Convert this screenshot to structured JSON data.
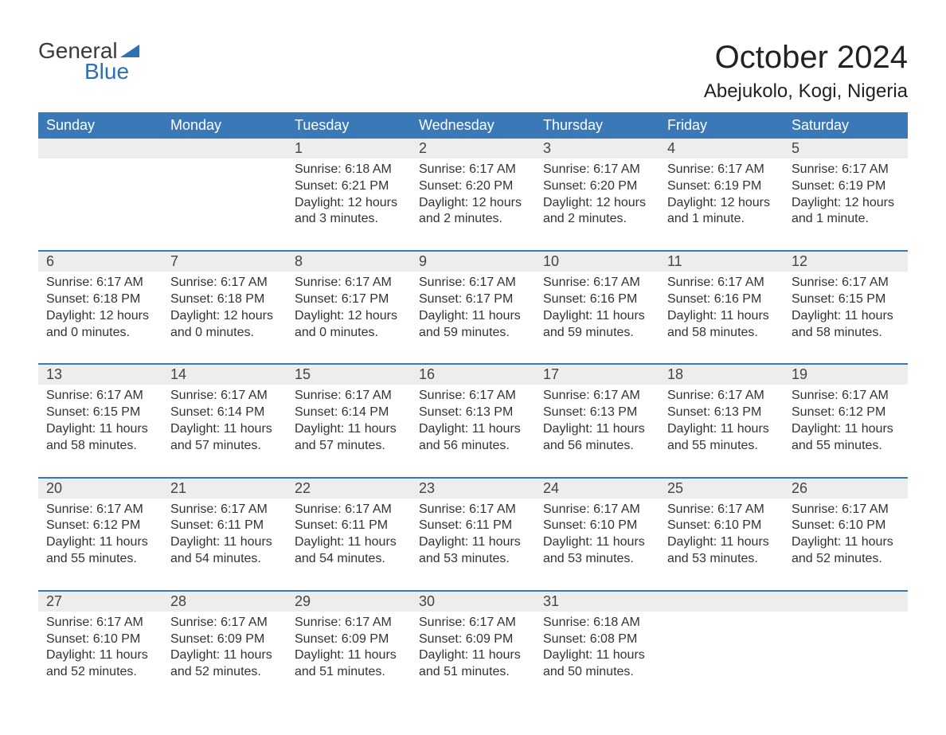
{
  "logo": {
    "text1": "General",
    "text2": "Blue"
  },
  "title": "October 2024",
  "location": "Abejukolo, Kogi, Nigeria",
  "colors": {
    "header_bg": "#3a78b8",
    "header_text": "#ffffff",
    "daynum_bg": "#eceded",
    "row_divider": "#3a78b8",
    "logo_blue": "#2f6fb3",
    "body_text": "#333333"
  },
  "weekdays": [
    "Sunday",
    "Monday",
    "Tuesday",
    "Wednesday",
    "Thursday",
    "Friday",
    "Saturday"
  ],
  "weeks": [
    [
      null,
      null,
      {
        "n": "1",
        "sunrise": "6:18 AM",
        "sunset": "6:21 PM",
        "daylight": "12 hours and 3 minutes."
      },
      {
        "n": "2",
        "sunrise": "6:17 AM",
        "sunset": "6:20 PM",
        "daylight": "12 hours and 2 minutes."
      },
      {
        "n": "3",
        "sunrise": "6:17 AM",
        "sunset": "6:20 PM",
        "daylight": "12 hours and 2 minutes."
      },
      {
        "n": "4",
        "sunrise": "6:17 AM",
        "sunset": "6:19 PM",
        "daylight": "12 hours and 1 minute."
      },
      {
        "n": "5",
        "sunrise": "6:17 AM",
        "sunset": "6:19 PM",
        "daylight": "12 hours and 1 minute."
      }
    ],
    [
      {
        "n": "6",
        "sunrise": "6:17 AM",
        "sunset": "6:18 PM",
        "daylight": "12 hours and 0 minutes."
      },
      {
        "n": "7",
        "sunrise": "6:17 AM",
        "sunset": "6:18 PM",
        "daylight": "12 hours and 0 minutes."
      },
      {
        "n": "8",
        "sunrise": "6:17 AM",
        "sunset": "6:17 PM",
        "daylight": "12 hours and 0 minutes."
      },
      {
        "n": "9",
        "sunrise": "6:17 AM",
        "sunset": "6:17 PM",
        "daylight": "11 hours and 59 minutes."
      },
      {
        "n": "10",
        "sunrise": "6:17 AM",
        "sunset": "6:16 PM",
        "daylight": "11 hours and 59 minutes."
      },
      {
        "n": "11",
        "sunrise": "6:17 AM",
        "sunset": "6:16 PM",
        "daylight": "11 hours and 58 minutes."
      },
      {
        "n": "12",
        "sunrise": "6:17 AM",
        "sunset": "6:15 PM",
        "daylight": "11 hours and 58 minutes."
      }
    ],
    [
      {
        "n": "13",
        "sunrise": "6:17 AM",
        "sunset": "6:15 PM",
        "daylight": "11 hours and 58 minutes."
      },
      {
        "n": "14",
        "sunrise": "6:17 AM",
        "sunset": "6:14 PM",
        "daylight": "11 hours and 57 minutes."
      },
      {
        "n": "15",
        "sunrise": "6:17 AM",
        "sunset": "6:14 PM",
        "daylight": "11 hours and 57 minutes."
      },
      {
        "n": "16",
        "sunrise": "6:17 AM",
        "sunset": "6:13 PM",
        "daylight": "11 hours and 56 minutes."
      },
      {
        "n": "17",
        "sunrise": "6:17 AM",
        "sunset": "6:13 PM",
        "daylight": "11 hours and 56 minutes."
      },
      {
        "n": "18",
        "sunrise": "6:17 AM",
        "sunset": "6:13 PM",
        "daylight": "11 hours and 55 minutes."
      },
      {
        "n": "19",
        "sunrise": "6:17 AM",
        "sunset": "6:12 PM",
        "daylight": "11 hours and 55 minutes."
      }
    ],
    [
      {
        "n": "20",
        "sunrise": "6:17 AM",
        "sunset": "6:12 PM",
        "daylight": "11 hours and 55 minutes."
      },
      {
        "n": "21",
        "sunrise": "6:17 AM",
        "sunset": "6:11 PM",
        "daylight": "11 hours and 54 minutes."
      },
      {
        "n": "22",
        "sunrise": "6:17 AM",
        "sunset": "6:11 PM",
        "daylight": "11 hours and 54 minutes."
      },
      {
        "n": "23",
        "sunrise": "6:17 AM",
        "sunset": "6:11 PM",
        "daylight": "11 hours and 53 minutes."
      },
      {
        "n": "24",
        "sunrise": "6:17 AM",
        "sunset": "6:10 PM",
        "daylight": "11 hours and 53 minutes."
      },
      {
        "n": "25",
        "sunrise": "6:17 AM",
        "sunset": "6:10 PM",
        "daylight": "11 hours and 53 minutes."
      },
      {
        "n": "26",
        "sunrise": "6:17 AM",
        "sunset": "6:10 PM",
        "daylight": "11 hours and 52 minutes."
      }
    ],
    [
      {
        "n": "27",
        "sunrise": "6:17 AM",
        "sunset": "6:10 PM",
        "daylight": "11 hours and 52 minutes."
      },
      {
        "n": "28",
        "sunrise": "6:17 AM",
        "sunset": "6:09 PM",
        "daylight": "11 hours and 52 minutes."
      },
      {
        "n": "29",
        "sunrise": "6:17 AM",
        "sunset": "6:09 PM",
        "daylight": "11 hours and 51 minutes."
      },
      {
        "n": "30",
        "sunrise": "6:17 AM",
        "sunset": "6:09 PM",
        "daylight": "11 hours and 51 minutes."
      },
      {
        "n": "31",
        "sunrise": "6:18 AM",
        "sunset": "6:08 PM",
        "daylight": "11 hours and 50 minutes."
      },
      null,
      null
    ]
  ],
  "labels": {
    "sunrise": "Sunrise: ",
    "sunset": "Sunset: ",
    "daylight": "Daylight: "
  }
}
